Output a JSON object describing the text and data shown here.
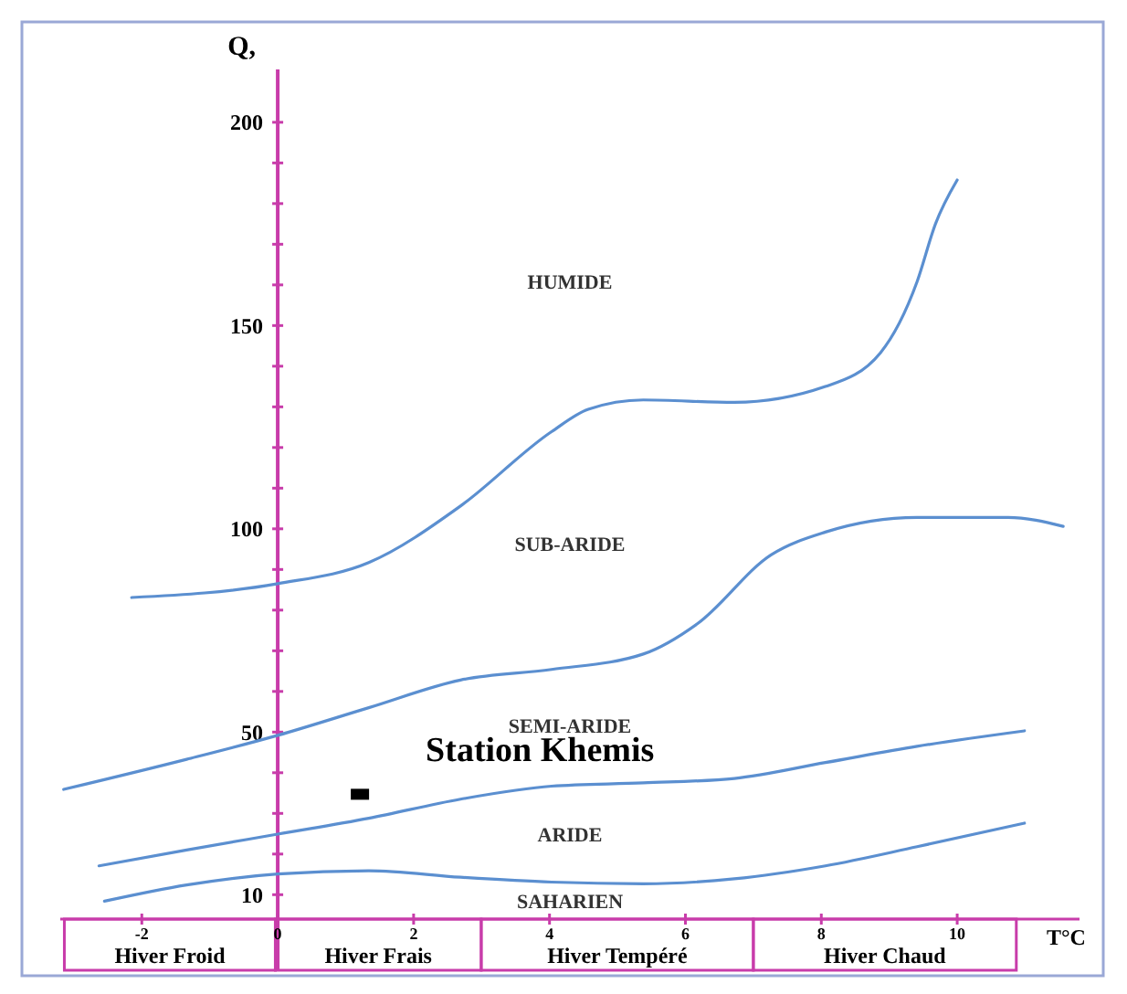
{
  "chart_data": {
    "type": "line",
    "xlabel": "T°C",
    "ylabel": "Q,",
    "xlim": [
      -3.2,
      11.8
    ],
    "ylim": [
      4,
      213
    ],
    "xticks": [
      -2,
      0,
      2,
      4,
      6,
      8,
      10
    ],
    "yticks": [
      10,
      {
        "value": 20,
        "label": null
      },
      {
        "value": 30,
        "label": null
      },
      {
        "value": 40,
        "label": null
      },
      50,
      {
        "value": 60,
        "label": null
      },
      {
        "value": 70,
        "label": null
      },
      {
        "value": 80,
        "label": null
      },
      {
        "value": 90,
        "label": null
      },
      100,
      {
        "value": 110,
        "label": null
      },
      {
        "value": 120,
        "label": null
      },
      {
        "value": 130,
        "label": null
      },
      {
        "value": 140,
        "label": null
      },
      150,
      {
        "value": 160,
        "label": null
      },
      {
        "value": 170,
        "label": null
      },
      {
        "value": 180,
        "label": null
      },
      {
        "value": 190,
        "label": null
      },
      200
    ],
    "grid": false,
    "marker": "none",
    "line_style": "solid",
    "series": [
      {
        "color": "#5b8fd0",
        "x": [
          -2.15,
          0,
          1.34,
          2.69,
          4.03,
          4.57,
          5.38,
          6.72,
          8.06,
          8.87,
          9.41,
          9.68,
          10.0
        ],
        "values": [
          83.1,
          86.5,
          91.7,
          105.6,
          123.9,
          129.4,
          131.7,
          131.1,
          135,
          143.3,
          160.8,
          175,
          185.8
        ]
      },
      {
        "color": "#5b8fd0",
        "x": [
          -3.15,
          -1.34,
          0,
          1.34,
          2.69,
          4.03,
          5.38,
          6.18,
          7.26,
          8.06,
          9.41,
          10.75,
          11.56
        ],
        "values": [
          35.9,
          43.3,
          49.2,
          56.0,
          62.8,
          65.4,
          69.2,
          76.7,
          93.6,
          99.2,
          102.8,
          102.8,
          100.6
        ]
      },
      {
        "color": "#5b8fd0",
        "x": [
          -2.63,
          -1.34,
          0,
          1.34,
          2.69,
          4.03,
          5.38,
          6.72,
          8.06,
          9.41,
          10.99
        ],
        "values": [
          17.1,
          21.0,
          24.9,
          28.8,
          33.5,
          36.7,
          37.5,
          38.6,
          42.5,
          46.5,
          50.3
        ]
      },
      {
        "color": "#5b8fd0",
        "x": [
          -2.55,
          -1.34,
          0,
          1.34,
          2.69,
          4.03,
          5.38,
          6.72,
          8.06,
          9.41,
          10.99
        ],
        "values": [
          8.4,
          12.4,
          15.1,
          15.9,
          14.3,
          13.1,
          12.7,
          13.9,
          17.1,
          21.8,
          27.6
        ]
      },
      {
        "type": "scatter",
        "name": "Station Khemis",
        "color": "#000000",
        "marker": "square",
        "x": [
          1.21
        ],
        "values": [
          34.7
        ]
      }
    ],
    "annotations": [
      "HUMIDE",
      "SUB-ARIDE",
      "SEMI-ARIDE",
      "ARIDE",
      "SAHARIEN",
      "Hiver Froid",
      "Hiver Frais",
      "Hiver Tempéré",
      "Hiver Chaud"
    ]
  }
}
